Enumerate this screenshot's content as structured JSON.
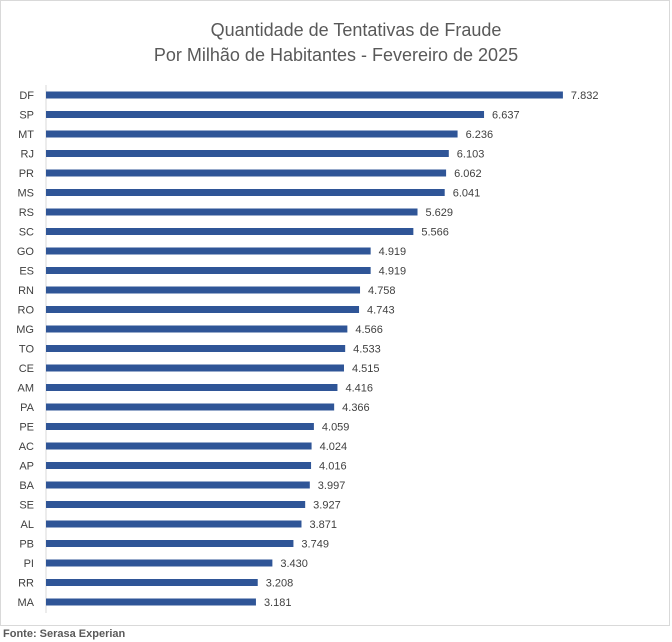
{
  "chart_data": {
    "type": "bar",
    "orientation": "horizontal",
    "title": [
      "Quantidade de Tentativas de Fraude",
      "Por Milhão de Habitantes - Fevereiro de 2025"
    ],
    "categories": [
      "DF",
      "SP",
      "MT",
      "RJ",
      "PR",
      "MS",
      "RS",
      "SC",
      "GO",
      "ES",
      "RN",
      "RO",
      "MG",
      "TO",
      "CE",
      "AM",
      "PA",
      "PE",
      "AC",
      "AP",
      "BA",
      "SE",
      "AL",
      "PB",
      "PI",
      "RR",
      "MA"
    ],
    "values": [
      7832,
      6637,
      6236,
      6103,
      6062,
      6041,
      5629,
      5566,
      4919,
      4919,
      4758,
      4743,
      4566,
      4533,
      4515,
      4416,
      4366,
      4059,
      4024,
      4016,
      3997,
      3927,
      3871,
      3749,
      3430,
      3208,
      3181
    ],
    "value_labels": [
      "7.832",
      "6.637",
      "6.236",
      "6.103",
      "6.062",
      "6.041",
      "5.629",
      "5.566",
      "4.919",
      "4.919",
      "4.758",
      "4.743",
      "4.566",
      "4.533",
      "4.515",
      "4.416",
      "4.366",
      "4.059",
      "4.024",
      "4.016",
      "3.997",
      "3.927",
      "3.871",
      "3.749",
      "3.430",
      "3.208",
      "3.181"
    ],
    "xlim": [
      0,
      8000
    ],
    "grid": false,
    "legend": "none",
    "bar_color": "#2f5597"
  },
  "source": "Fonte: Serasa Experian"
}
